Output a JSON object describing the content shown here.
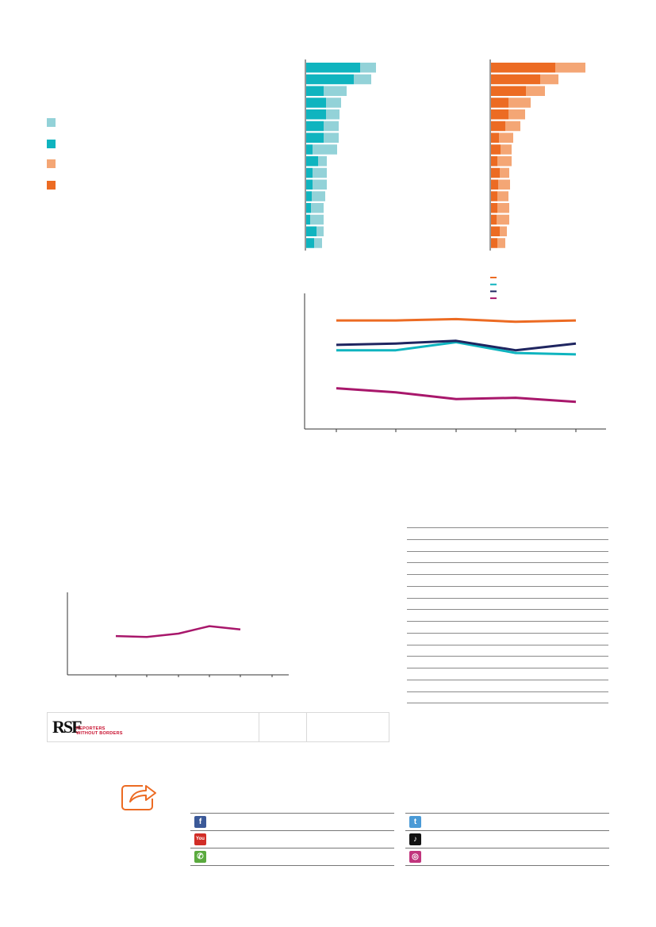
{
  "legend": {
    "items": [
      {
        "color": "#93d2d8"
      },
      {
        "color": "#0fb4bf"
      },
      {
        "color": "#f4a675"
      },
      {
        "color": "#ec6b23"
      }
    ]
  },
  "chart_data": [
    {
      "type": "bar",
      "orientation": "horizontal",
      "stacked": true,
      "series": [
        {
          "color": "#0fb4bf",
          "values": [
            68,
            60,
            22,
            25,
            25,
            22,
            22,
            8,
            15,
            8,
            8,
            7,
            6,
            5,
            13,
            10
          ]
        },
        {
          "color": "#93d2d8",
          "values": [
            20,
            22,
            29,
            19,
            17,
            19,
            19,
            31,
            11,
            18,
            18,
            17,
            16,
            17,
            9,
            10
          ]
        }
      ]
    },
    {
      "type": "bar",
      "orientation": "horizontal",
      "stacked": true,
      "series": [
        {
          "color": "#ec6b23",
          "values": [
            81,
            62,
            44,
            22,
            22,
            18,
            10,
            12,
            8,
            11,
            9,
            8,
            8,
            7,
            11,
            8
          ]
        },
        {
          "color": "#f4a675",
          "values": [
            38,
            23,
            24,
            28,
            21,
            19,
            18,
            14,
            18,
            12,
            15,
            14,
            15,
            16,
            9,
            10
          ]
        }
      ]
    },
    {
      "type": "line",
      "x": [
        1,
        2,
        3,
        4,
        5
      ],
      "ylim": [
        0,
        100
      ],
      "series": [
        {
          "color": "#ec6b23",
          "values": [
            90,
            90,
            91,
            89,
            90
          ]
        },
        {
          "color": "#0fb4bf",
          "values": [
            68,
            68,
            74,
            66,
            65
          ]
        },
        {
          "color": "#1f2560",
          "values": [
            72,
            73,
            75,
            68,
            73
          ]
        },
        {
          "color": "#a8176b",
          "values": [
            40,
            37,
            32,
            33,
            30
          ]
        }
      ]
    },
    {
      "type": "line",
      "x": [
        1,
        2,
        3,
        4,
        5,
        6,
        7
      ],
      "ylim": [
        0,
        100
      ],
      "series": [
        {
          "color": "#a8176b",
          "values": [
            47,
            46,
            50,
            59,
            55,
            null,
            null
          ]
        }
      ]
    }
  ],
  "rsf": {
    "logo_mark": "RSF",
    "logo_line1": "REPORTERS",
    "logo_line2": "WITHOUT BORDERS"
  },
  "social": {
    "items": [
      {
        "icon": "facebook-icon",
        "color": "#3b5998",
        "glyph": "f"
      },
      {
        "icon": "twitter-icon",
        "color": "#4a9ad6",
        "glyph": "t"
      },
      {
        "icon": "youtube-icon",
        "color": "#d12d26",
        "glyph": "You"
      },
      {
        "icon": "tiktok-icon",
        "color": "#111111",
        "glyph": "♪"
      },
      {
        "icon": "whatsapp-icon",
        "color": "#5aaa3e",
        "glyph": "✆"
      },
      {
        "icon": "instagram-icon",
        "color": "#c1357d",
        "glyph": "◎"
      }
    ]
  }
}
